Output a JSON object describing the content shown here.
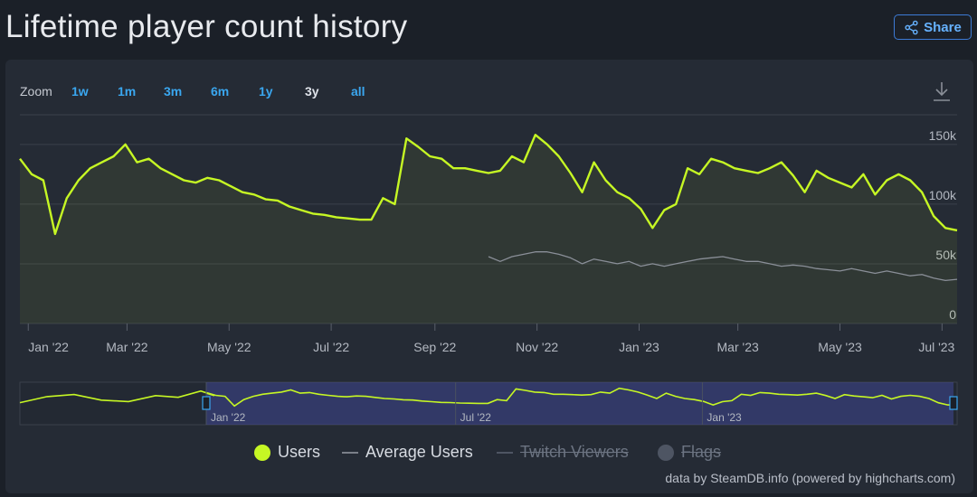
{
  "page": {
    "title": "Lifetime player count history",
    "share_label": "Share"
  },
  "zoom": {
    "label": "Zoom",
    "buttons": [
      "1w",
      "1m",
      "3m",
      "6m",
      "1y",
      "3y",
      "all"
    ],
    "active": "3y"
  },
  "legend": [
    {
      "label": "Users",
      "color": "#c6f724",
      "kind": "dot",
      "visible": true
    },
    {
      "label": "Average Users",
      "color": "#7a7f88",
      "kind": "dash",
      "visible": true
    },
    {
      "label": "Twitch Viewers",
      "color": "#6c7482",
      "kind": "dash",
      "visible": false
    },
    {
      "label": "Flags",
      "color": "#6c7482",
      "kind": "dot",
      "visible": false
    }
  ],
  "credits": "data by SteamDB.info (powered by highcharts.com)",
  "colors": {
    "users": "#c6f724",
    "average": "#8a8f98",
    "background": "#1b2028",
    "panel": "#252b35",
    "accent": "#3aa7f0"
  },
  "chart_data": {
    "type": "line",
    "title": "Lifetime player count history",
    "xlabel": "",
    "ylabel": "",
    "ylim": [
      0,
      165000
    ],
    "yticks": [
      0,
      50000,
      100000,
      150000
    ],
    "ytick_labels": [
      "0",
      "50k",
      "100k",
      "150k"
    ],
    "x_range": [
      "2021-12-27",
      "2023-07-10"
    ],
    "xticks": [
      "2022-01-01",
      "2022-03-01",
      "2022-05-01",
      "2022-07-01",
      "2022-09-01",
      "2022-11-01",
      "2023-01-01",
      "2023-03-01",
      "2023-05-01",
      "2023-07-01"
    ],
    "xtick_labels": [
      "Jan '22",
      "Mar '22",
      "May '22",
      "Jul '22",
      "Sep '22",
      "Nov '22",
      "Jan '23",
      "Mar '23",
      "May '23",
      "Jul '23"
    ],
    "grid": true,
    "legend_position": "bottom",
    "series": [
      {
        "name": "Users",
        "x": [
          "2021-12-27",
          "2022-01-03",
          "2022-01-10",
          "2022-01-17",
          "2022-01-24",
          "2022-01-31",
          "2022-02-07",
          "2022-02-14",
          "2022-02-21",
          "2022-02-28",
          "2022-03-07",
          "2022-03-14",
          "2022-03-21",
          "2022-03-28",
          "2022-04-04",
          "2022-04-11",
          "2022-04-18",
          "2022-04-25",
          "2022-05-02",
          "2022-05-09",
          "2022-05-16",
          "2022-05-23",
          "2022-05-30",
          "2022-06-06",
          "2022-06-13",
          "2022-06-20",
          "2022-06-27",
          "2022-07-04",
          "2022-07-11",
          "2022-07-18",
          "2022-07-25",
          "2022-08-01",
          "2022-08-08",
          "2022-08-15",
          "2022-08-22",
          "2022-08-29",
          "2022-09-05",
          "2022-09-12",
          "2022-09-19",
          "2022-09-26",
          "2022-10-03",
          "2022-10-10",
          "2022-10-17",
          "2022-10-24",
          "2022-10-31",
          "2022-11-07",
          "2022-11-14",
          "2022-11-21",
          "2022-11-28",
          "2022-12-05",
          "2022-12-12",
          "2022-12-19",
          "2022-12-26",
          "2023-01-02",
          "2023-01-09",
          "2023-01-16",
          "2023-01-23",
          "2023-01-30",
          "2023-02-06",
          "2023-02-13",
          "2023-02-20",
          "2023-02-27",
          "2023-03-06",
          "2023-03-13",
          "2023-03-20",
          "2023-03-27",
          "2023-04-03",
          "2023-04-10",
          "2023-04-17",
          "2023-04-24",
          "2023-05-01",
          "2023-05-08",
          "2023-05-15",
          "2023-05-22",
          "2023-05-29",
          "2023-06-05",
          "2023-06-12",
          "2023-06-19",
          "2023-06-26",
          "2023-07-03",
          "2023-07-10"
        ],
        "values": [
          138000,
          125000,
          120000,
          75000,
          105000,
          120000,
          130000,
          135000,
          140000,
          150000,
          135000,
          138000,
          130000,
          125000,
          120000,
          118000,
          122000,
          120000,
          115000,
          110000,
          108000,
          104000,
          103000,
          98000,
          95000,
          92000,
          91000,
          89000,
          88000,
          87000,
          87000,
          105000,
          100000,
          155000,
          148000,
          140000,
          138000,
          130000,
          130000,
          128000,
          126000,
          128000,
          140000,
          135000,
          158000,
          150000,
          140000,
          126000,
          110000,
          135000,
          120000,
          110000,
          105000,
          96000,
          80000,
          95000,
          100000,
          130000,
          125000,
          138000,
          135000,
          130000,
          128000,
          126000,
          130000,
          135000,
          124000,
          110000,
          128000,
          122000,
          118000,
          114000,
          125000,
          108000,
          120000,
          125000,
          120000,
          110000,
          90000,
          80000,
          78000
        ]
      },
      {
        "name": "Average Users",
        "x": [
          "2022-10-03",
          "2022-10-10",
          "2022-10-17",
          "2022-10-24",
          "2022-10-31",
          "2022-11-07",
          "2022-11-14",
          "2022-11-21",
          "2022-11-28",
          "2022-12-05",
          "2022-12-12",
          "2022-12-19",
          "2022-12-26",
          "2023-01-02",
          "2023-01-09",
          "2023-01-16",
          "2023-01-23",
          "2023-01-30",
          "2023-02-06",
          "2023-02-13",
          "2023-02-20",
          "2023-02-27",
          "2023-03-06",
          "2023-03-13",
          "2023-03-20",
          "2023-03-27",
          "2023-04-03",
          "2023-04-10",
          "2023-04-17",
          "2023-04-24",
          "2023-05-01",
          "2023-05-08",
          "2023-05-15",
          "2023-05-22",
          "2023-05-29",
          "2023-06-05",
          "2023-06-12",
          "2023-06-19",
          "2023-06-26",
          "2023-07-03",
          "2023-07-10"
        ],
        "values": [
          56000,
          52000,
          56000,
          58000,
          60000,
          60000,
          58000,
          55000,
          50000,
          54000,
          52000,
          50000,
          52000,
          48000,
          50000,
          48000,
          50000,
          52000,
          54000,
          55000,
          56000,
          54000,
          52000,
          52000,
          50000,
          48000,
          49000,
          48000,
          46000,
          45000,
          44000,
          46000,
          44000,
          42000,
          44000,
          42000,
          40000,
          41000,
          38000,
          36000,
          37000
        ]
      }
    ]
  }
}
